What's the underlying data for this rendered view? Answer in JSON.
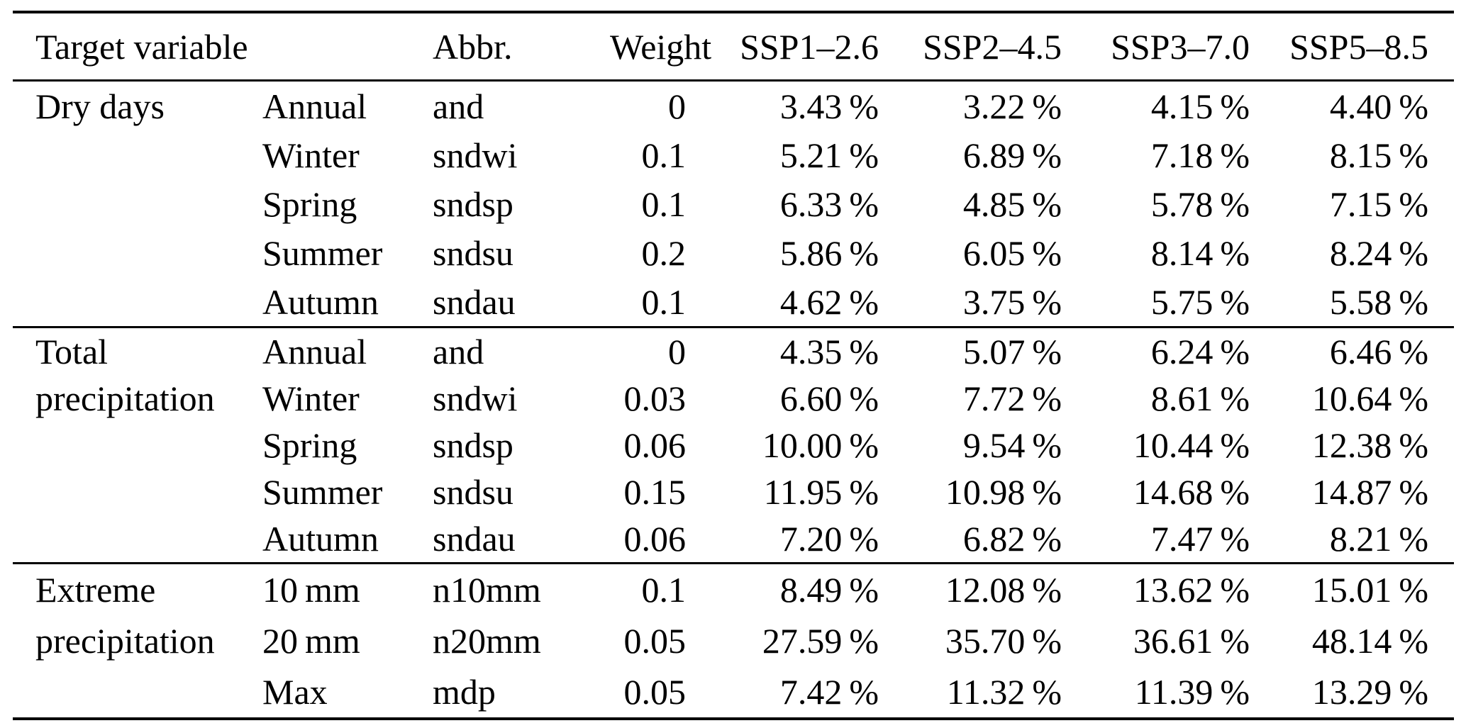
{
  "table": {
    "headers": {
      "target_variable": "Target variable",
      "abbr": "Abbr.",
      "weight": "Weight",
      "scenarios": [
        "SSP1–2.6",
        "SSP2–4.5",
        "SSP3–7.0",
        "SSP5–8.5"
      ]
    },
    "sections": [
      {
        "group": [
          "Dry days"
        ],
        "rows": [
          {
            "season": "Annual",
            "abbr": "and",
            "weight": "0",
            "values": [
              "3.43 %",
              "3.22 %",
              "4.15 %",
              "4.40 %"
            ]
          },
          {
            "season": "Winter",
            "abbr": "sndwi",
            "weight": "0.1",
            "values": [
              "5.21 %",
              "6.89 %",
              "7.18 %",
              "8.15 %"
            ]
          },
          {
            "season": "Spring",
            "abbr": "sndsp",
            "weight": "0.1",
            "values": [
              "6.33 %",
              "4.85 %",
              "5.78 %",
              "7.15 %"
            ]
          },
          {
            "season": "Summer",
            "abbr": "sndsu",
            "weight": "0.2",
            "values": [
              "5.86 %",
              "6.05 %",
              "8.14 %",
              "8.24 %"
            ]
          },
          {
            "season": "Autumn",
            "abbr": "sndau",
            "weight": "0.1",
            "values": [
              "4.62 %",
              "3.75 %",
              "5.75 %",
              "5.58 %"
            ]
          }
        ]
      },
      {
        "group": [
          "Total",
          "precipitation"
        ],
        "rows": [
          {
            "season": "Annual",
            "abbr": "and",
            "weight": "0",
            "values": [
              "4.35 %",
              "5.07 %",
              "6.24 %",
              "6.46 %"
            ]
          },
          {
            "season": "Winter",
            "abbr": "sndwi",
            "weight": "0.03",
            "values": [
              "6.60 %",
              "7.72 %",
              "8.61 %",
              "10.64 %"
            ]
          },
          {
            "season": "Spring",
            "abbr": "sndsp",
            "weight": "0.06",
            "values": [
              "10.00 %",
              "9.54 %",
              "10.44 %",
              "12.38 %"
            ]
          },
          {
            "season": "Summer",
            "abbr": "sndsu",
            "weight": "0.15",
            "values": [
              "11.95 %",
              "10.98 %",
              "14.68 %",
              "14.87 %"
            ]
          },
          {
            "season": "Autumn",
            "abbr": "sndau",
            "weight": "0.06",
            "values": [
              "7.20 %",
              "6.82 %",
              "7.47 %",
              "8.21 %"
            ]
          }
        ]
      },
      {
        "group": [
          "Extreme",
          "precipitation"
        ],
        "rows": [
          {
            "season": "10 mm",
            "abbr": "n10mm",
            "weight": "0.1",
            "values": [
              "8.49 %",
              "12.08 %",
              "13.62 %",
              "15.01 %"
            ]
          },
          {
            "season": "20 mm",
            "abbr": "n20mm",
            "weight": "0.05",
            "values": [
              "27.59 %",
              "35.70 %",
              "36.61 %",
              "48.14 %"
            ]
          },
          {
            "season": "Max",
            "abbr": "mdp",
            "weight": "0.05",
            "values": [
              "7.42 %",
              "11.32 %",
              "11.39 %",
              "13.29 %"
            ]
          }
        ]
      }
    ]
  }
}
